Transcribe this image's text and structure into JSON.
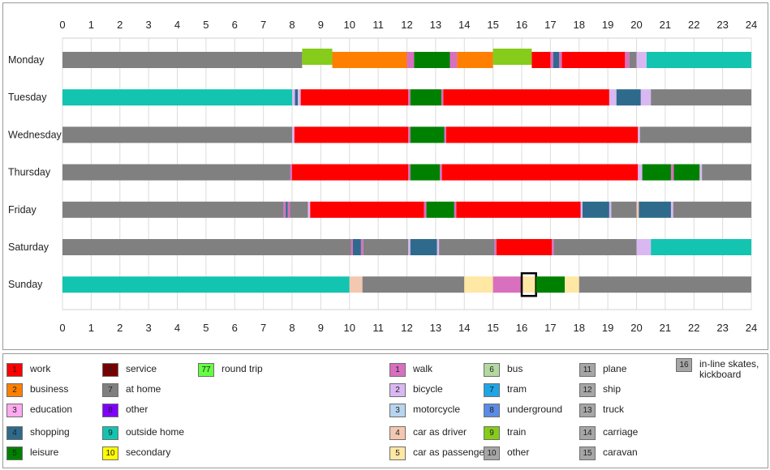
{
  "chart_data": {
    "type": "timeline",
    "x_ticks": [
      "0",
      "1",
      "2",
      "3",
      "4",
      "5",
      "6",
      "7",
      "8",
      "9",
      "10",
      "11",
      "12",
      "13",
      "14",
      "15",
      "16",
      "17",
      "18",
      "19",
      "20",
      "21",
      "22",
      "23",
      "24"
    ],
    "xlim": [
      0,
      24
    ],
    "grid": true,
    "rows": [
      {
        "day": "Monday",
        "segments": [
          {
            "start": 0,
            "end": 8.35,
            "code": 7
          },
          {
            "start": 8.35,
            "end": 9.4,
            "code": "t9"
          },
          {
            "start": 9.4,
            "end": 12.0,
            "code": 2
          },
          {
            "start": 12.0,
            "end": 12.25,
            "code": "m1"
          },
          {
            "start": 12.25,
            "end": 13.5,
            "code": 5
          },
          {
            "start": 13.5,
            "end": 13.75,
            "code": "m1"
          },
          {
            "start": 13.75,
            "end": 15.0,
            "code": 2
          },
          {
            "start": 15.0,
            "end": 16.35,
            "code": "t9"
          },
          {
            "start": 16.35,
            "end": 17.0,
            "code": 1
          },
          {
            "start": 17.0,
            "end": 17.1,
            "code": "m1"
          },
          {
            "start": 17.1,
            "end": 17.3,
            "code": 4
          },
          {
            "start": 17.3,
            "end": 17.4,
            "code": "m1"
          },
          {
            "start": 17.4,
            "end": 19.6,
            "code": 1
          },
          {
            "start": 19.6,
            "end": 19.75,
            "code": "m1"
          },
          {
            "start": 19.75,
            "end": 20.0,
            "code": 7
          },
          {
            "start": 20.0,
            "end": 20.35,
            "code": "m2"
          },
          {
            "start": 20.35,
            "end": 24,
            "code": 9
          }
        ]
      },
      {
        "day": "Tuesday",
        "segments": [
          {
            "start": 0,
            "end": 8.0,
            "code": 9
          },
          {
            "start": 8.0,
            "end": 8.1,
            "code": "m2"
          },
          {
            "start": 8.1,
            "end": 8.2,
            "code": 4
          },
          {
            "start": 8.2,
            "end": 8.3,
            "code": "m2"
          },
          {
            "start": 8.3,
            "end": 12.05,
            "code": 1
          },
          {
            "start": 12.05,
            "end": 12.12,
            "code": "m1"
          },
          {
            "start": 12.12,
            "end": 13.2,
            "code": 5
          },
          {
            "start": 13.2,
            "end": 13.27,
            "code": "m1"
          },
          {
            "start": 13.27,
            "end": 19.05,
            "code": 1
          },
          {
            "start": 19.05,
            "end": 19.3,
            "code": "m2"
          },
          {
            "start": 19.3,
            "end": 20.15,
            "code": 4
          },
          {
            "start": 20.15,
            "end": 20.5,
            "code": "m2"
          },
          {
            "start": 20.5,
            "end": 24,
            "code": 7
          }
        ]
      },
      {
        "day": "Wednesday",
        "segments": [
          {
            "start": 0,
            "end": 8.0,
            "code": 7
          },
          {
            "start": 8.0,
            "end": 8.08,
            "code": "m2"
          },
          {
            "start": 8.08,
            "end": 12.05,
            "code": 1
          },
          {
            "start": 12.05,
            "end": 12.12,
            "code": "m1"
          },
          {
            "start": 12.12,
            "end": 13.3,
            "code": 5
          },
          {
            "start": 13.3,
            "end": 13.37,
            "code": "m1"
          },
          {
            "start": 13.37,
            "end": 20.05,
            "code": 1
          },
          {
            "start": 20.05,
            "end": 20.12,
            "code": "m2"
          },
          {
            "start": 20.12,
            "end": 24,
            "code": 7
          }
        ]
      },
      {
        "day": "Thursday",
        "segments": [
          {
            "start": 0,
            "end": 7.93,
            "code": 7
          },
          {
            "start": 7.93,
            "end": 8.0,
            "code": "m1"
          },
          {
            "start": 8.0,
            "end": 12.05,
            "code": 1
          },
          {
            "start": 12.05,
            "end": 12.12,
            "code": "m1"
          },
          {
            "start": 12.12,
            "end": 13.15,
            "code": 5
          },
          {
            "start": 13.15,
            "end": 13.22,
            "code": "m1"
          },
          {
            "start": 13.22,
            "end": 20.05,
            "code": 1
          },
          {
            "start": 20.05,
            "end": 20.2,
            "code": "m2"
          },
          {
            "start": 20.2,
            "end": 21.2,
            "code": 5
          },
          {
            "start": 21.2,
            "end": 21.3,
            "code": "m1"
          },
          {
            "start": 21.3,
            "end": 22.2,
            "code": 5
          },
          {
            "start": 22.2,
            "end": 22.28,
            "code": "m2"
          },
          {
            "start": 22.28,
            "end": 24,
            "code": 7
          }
        ]
      },
      {
        "day": "Friday",
        "segments": [
          {
            "start": 0,
            "end": 7.7,
            "code": 7
          },
          {
            "start": 7.7,
            "end": 7.78,
            "code": "m1"
          },
          {
            "start": 7.78,
            "end": 7.85,
            "code": 4
          },
          {
            "start": 7.85,
            "end": 7.93,
            "code": "m1"
          },
          {
            "start": 7.93,
            "end": 8.55,
            "code": 7
          },
          {
            "start": 8.55,
            "end": 8.63,
            "code": "m2"
          },
          {
            "start": 8.63,
            "end": 12.6,
            "code": 1
          },
          {
            "start": 12.6,
            "end": 12.68,
            "code": "m1"
          },
          {
            "start": 12.68,
            "end": 13.65,
            "code": 5
          },
          {
            "start": 13.65,
            "end": 13.72,
            "code": "m1"
          },
          {
            "start": 13.72,
            "end": 18.05,
            "code": 1
          },
          {
            "start": 18.05,
            "end": 18.12,
            "code": "m2"
          },
          {
            "start": 18.12,
            "end": 19.05,
            "code": 4
          },
          {
            "start": 19.05,
            "end": 19.12,
            "code": "m2"
          },
          {
            "start": 19.12,
            "end": 20.0,
            "code": 7
          },
          {
            "start": 20.0,
            "end": 20.08,
            "code": "m4"
          },
          {
            "start": 20.08,
            "end": 21.2,
            "code": 4
          },
          {
            "start": 21.2,
            "end": 21.28,
            "code": "m2"
          },
          {
            "start": 21.28,
            "end": 24,
            "code": 7
          }
        ]
      },
      {
        "day": "Saturday",
        "segments": [
          {
            "start": 0,
            "end": 10.05,
            "code": 7
          },
          {
            "start": 10.05,
            "end": 10.12,
            "code": "m1"
          },
          {
            "start": 10.12,
            "end": 10.4,
            "code": 4
          },
          {
            "start": 10.4,
            "end": 10.48,
            "code": "m1"
          },
          {
            "start": 10.48,
            "end": 12.05,
            "code": 7
          },
          {
            "start": 12.05,
            "end": 12.12,
            "code": "m2"
          },
          {
            "start": 12.12,
            "end": 13.05,
            "code": 4
          },
          {
            "start": 13.05,
            "end": 13.12,
            "code": "m2"
          },
          {
            "start": 13.12,
            "end": 15.05,
            "code": 7
          },
          {
            "start": 15.05,
            "end": 15.12,
            "code": "m1"
          },
          {
            "start": 15.12,
            "end": 17.05,
            "code": 1
          },
          {
            "start": 17.05,
            "end": 17.12,
            "code": "m1"
          },
          {
            "start": 17.12,
            "end": 20.0,
            "code": 7
          },
          {
            "start": 20.0,
            "end": 20.5,
            "code": "m2"
          },
          {
            "start": 20.5,
            "end": 24,
            "code": 9
          }
        ]
      },
      {
        "day": "Sunday",
        "segments": [
          {
            "start": 0,
            "end": 10.0,
            "code": 9
          },
          {
            "start": 10.0,
            "end": 10.45,
            "code": "m4"
          },
          {
            "start": 10.45,
            "end": 14.0,
            "code": 7
          },
          {
            "start": 14.0,
            "end": 15.0,
            "code": "m5"
          },
          {
            "start": 15.0,
            "end": 16.0,
            "code": "m1"
          },
          {
            "start": 16.0,
            "end": 16.5,
            "code": "m5",
            "highlight": true
          },
          {
            "start": 16.5,
            "end": 17.5,
            "code": 5
          },
          {
            "start": 17.5,
            "end": 18.0,
            "code": "m5"
          },
          {
            "start": 18.0,
            "end": 24,
            "code": 7
          }
        ]
      }
    ]
  },
  "legend": {
    "activities": [
      {
        "num": "1",
        "label": "work",
        "color": "#ff0000"
      },
      {
        "num": "2",
        "label": "business",
        "color": "#ff7f00"
      },
      {
        "num": "3",
        "label": "education",
        "color": "#ffaaee"
      },
      {
        "num": "4",
        "label": "shopping",
        "color": "#2e6a8c"
      },
      {
        "num": "5",
        "label": "leisure",
        "color": "#008000"
      },
      {
        "num": "6",
        "label": "service",
        "color": "#7a0000"
      },
      {
        "num": "7",
        "label": "at home",
        "color": "#808080"
      },
      {
        "num": "8",
        "label": "other",
        "color": "#8000ff"
      },
      {
        "num": "9",
        "label": "outside home",
        "color": "#13c4b0"
      },
      {
        "num": "10",
        "label": "secondary",
        "color": "#ffff00"
      },
      {
        "num": "77",
        "label": "round trip",
        "color": "#66ff44"
      }
    ],
    "modes": [
      {
        "num": "1",
        "label": "walk",
        "color": "#d96fbf"
      },
      {
        "num": "2",
        "label": "bicycle",
        "color": "#d9b8f2"
      },
      {
        "num": "3",
        "label": "motorcycle",
        "color": "#b8d4ee"
      },
      {
        "num": "4",
        "label": "car as driver",
        "color": "#f4c7b0"
      },
      {
        "num": "5",
        "label": "car as passenger",
        "color": "#ffe7a4"
      },
      {
        "num": "6",
        "label": "bus",
        "color": "#b3d9a0"
      },
      {
        "num": "7",
        "label": "tram",
        "color": "#1fa5e6"
      },
      {
        "num": "8",
        "label": "underground",
        "color": "#5b8be6"
      },
      {
        "num": "9",
        "label": "train",
        "color": "#86cc1a"
      },
      {
        "num": "10",
        "label": "other",
        "color": "#a6a6a6"
      },
      {
        "num": "11",
        "label": "plane",
        "color": "#a6a6a6"
      },
      {
        "num": "12",
        "label": "ship",
        "color": "#a6a6a6"
      },
      {
        "num": "13",
        "label": "truck",
        "color": "#a6a6a6"
      },
      {
        "num": "14",
        "label": "carriage",
        "color": "#a6a6a6"
      },
      {
        "num": "15",
        "label": "caravan",
        "color": "#a6a6a6"
      },
      {
        "num": "16",
        "label": "in-line skates, kickboard",
        "color": "#a6a6a6"
      }
    ]
  }
}
